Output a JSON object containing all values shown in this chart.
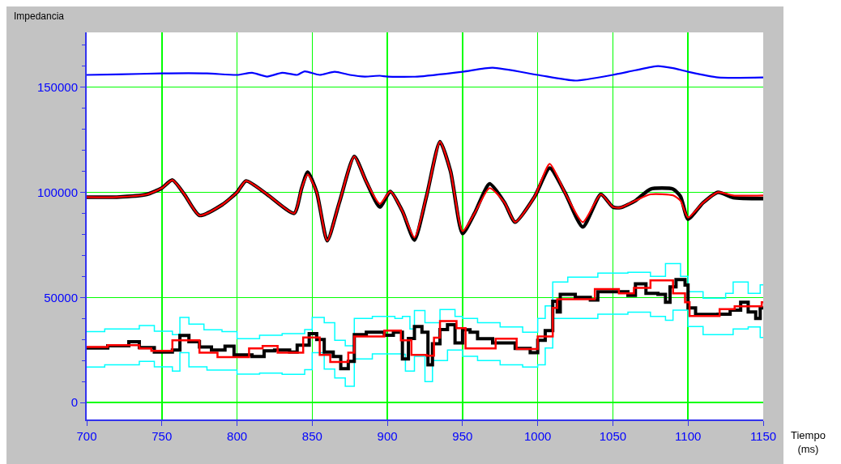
{
  "chart_data": {
    "type": "line",
    "xlabel": "Tiempo\n(ms)",
    "ylabel": "Impedancia",
    "xlim": [
      700,
      1150
    ],
    "xticks": [
      700,
      750,
      800,
      850,
      900,
      950,
      1000,
      1050,
      1100,
      1150
    ],
    "ylim": [
      -8000,
      176000
    ],
    "yticks": [
      0,
      50000,
      100000,
      150000
    ],
    "grid": true,
    "series": [
      {
        "color": "#0000ff",
        "x": [
          700,
          720,
          750,
          780,
          800,
          810,
          820,
          830,
          840,
          845,
          855,
          865,
          875,
          885,
          895,
          900,
          920,
          950,
          970,
          1000,
          1025,
          1050,
          1065,
          1080,
          1090,
          1100,
          1120,
          1150
        ],
        "values": [
          155800,
          156000,
          156500,
          156500,
          155800,
          156800,
          155000,
          156800,
          155800,
          157500,
          155800,
          157300,
          155800,
          155000,
          155400,
          155000,
          155000,
          157300,
          159200,
          155800,
          153100,
          155800,
          158000,
          160000,
          159000,
          157300,
          154600,
          154600
        ]
      },
      {
        "color": "#000000",
        "x": [
          700,
          720,
          740,
          750,
          757,
          765,
          775,
          790,
          800,
          806,
          820,
          838,
          843,
          847,
          853,
          860,
          868,
          878,
          886,
          895,
          902,
          910,
          918,
          926,
          935,
          942,
          950,
          958,
          968,
          978,
          985,
          998,
          1008,
          1018,
          1030,
          1042,
          1050,
          1055,
          1065,
          1075,
          1090,
          1095,
          1100,
          1110,
          1120,
          1130,
          1150
        ],
        "values": [
          97700,
          97700,
          99000,
          102000,
          105800,
          99000,
          89000,
          94000,
          100000,
          105400,
          99000,
          90000,
          102000,
          109600,
          100000,
          77000,
          95000,
          117000,
          105000,
          93000,
          100400,
          91000,
          77300,
          98000,
          124000,
          110000,
          80400,
          90000,
          104000,
          95000,
          85800,
          98000,
          111500,
          100000,
          83500,
          99000,
          93000,
          92700,
          96000,
          101500,
          101500,
          98000,
          87300,
          95000,
          100000,
          97500,
          97000
        ]
      },
      {
        "color": "#ff0000",
        "x": [
          700,
          720,
          740,
          750,
          757,
          765,
          775,
          790,
          800,
          806,
          820,
          838,
          843,
          847,
          853,
          860,
          868,
          878,
          886,
          895,
          902,
          910,
          918,
          926,
          935,
          942,
          950,
          958,
          968,
          978,
          985,
          998,
          1008,
          1018,
          1030,
          1042,
          1050,
          1055,
          1065,
          1075,
          1090,
          1095,
          1100,
          1110,
          1120,
          1130,
          1150
        ],
        "values": [
          97700,
          97700,
          99000,
          102000,
          105800,
          99000,
          89000,
          94000,
          100000,
          105400,
          99000,
          90000,
          102000,
          108500,
          100000,
          77000,
          95000,
          117000,
          105000,
          94500,
          100400,
          91000,
          78500,
          98000,
          124000,
          110000,
          81500,
          90000,
          102000,
          95000,
          85800,
          98000,
          113500,
          100000,
          85800,
          99000,
          93000,
          92700,
          96000,
          99000,
          98500,
          96000,
          88000,
          95000,
          100000,
          98500,
          98500
        ]
      },
      {
        "type": "step",
        "color": "#00ffff",
        "x": [
          700,
          712,
          735,
          745,
          757,
          762,
          768,
          778,
          790,
          800,
          815,
          830,
          845,
          850,
          858,
          865,
          872,
          878,
          890,
          905,
          910,
          915,
          918,
          925,
          935,
          945,
          950,
          960,
          975,
          990,
          1000,
          1005,
          1010,
          1020,
          1040,
          1060,
          1075,
          1085,
          1095,
          1100,
          1110,
          1125,
          1130,
          1140,
          1148,
          1150
        ],
        "values": [
          33800,
          35000,
          36700,
          34000,
          32300,
          40500,
          37300,
          34600,
          33800,
          30400,
          32000,
          32800,
          34700,
          40500,
          38000,
          29600,
          27000,
          40000,
          41000,
          40000,
          41000,
          35000,
          43800,
          38000,
          44300,
          41000,
          40000,
          38000,
          36000,
          33500,
          40000,
          46000,
          57300,
          59700,
          61600,
          62000,
          60000,
          66100,
          60000,
          52700,
          49600,
          52000,
          57300,
          52000,
          56000,
          56000
        ]
      },
      {
        "type": "step",
        "color": "#00ffff",
        "x": [
          700,
          712,
          735,
          745,
          757,
          762,
          768,
          780,
          800,
          815,
          830,
          845,
          850,
          858,
          865,
          872,
          878,
          890,
          910,
          912,
          918,
          925,
          930,
          940,
          950,
          960,
          975,
          990,
          1000,
          1005,
          1010,
          1020,
          1040,
          1060,
          1075,
          1085,
          1090,
          1100,
          1110,
          1130,
          1140,
          1148,
          1150
        ],
        "values": [
          16900,
          18000,
          19600,
          17000,
          15000,
          23800,
          17000,
          15500,
          13600,
          14000,
          13500,
          15700,
          23800,
          16000,
          11700,
          7800,
          20800,
          23200,
          23000,
          15000,
          22000,
          10000,
          20000,
          25000,
          22000,
          20000,
          18000,
          16900,
          18000,
          26000,
          40000,
          40000,
          42000,
          43000,
          41000,
          39200,
          44000,
          36200,
          32300,
          35000,
          36000,
          31000,
          31000
        ]
      },
      {
        "type": "step",
        "color": "#000000",
        "x": [
          700,
          714,
          728,
          735,
          745,
          757,
          762,
          768,
          775,
          783,
          792,
          798,
          810,
          818,
          825,
          835,
          840,
          848,
          853,
          858,
          864,
          869,
          874,
          878,
          886,
          898,
          904,
          910,
          914,
          918,
          923,
          927,
          930,
          935,
          940,
          945,
          950,
          955,
          960,
          970,
          985,
          995,
          1000,
          1005,
          1010,
          1013,
          1015,
          1025,
          1035,
          1040,
          1050,
          1060,
          1065,
          1072,
          1080,
          1085,
          1088,
          1092,
          1098,
          1100,
          1105,
          1120,
          1128,
          1135,
          1140,
          1145,
          1148,
          1150
        ],
        "values": [
          26000,
          27000,
          29000,
          26200,
          24000,
          25000,
          31900,
          29000,
          26500,
          25000,
          26800,
          22700,
          21900,
          24600,
          25000,
          24000,
          27300,
          32800,
          30000,
          24000,
          21900,
          16200,
          19600,
          32300,
          33500,
          32000,
          33500,
          20800,
          30500,
          36200,
          33500,
          18000,
          28000,
          34700,
          37000,
          28400,
          34600,
          33500,
          30400,
          28400,
          25800,
          23800,
          29600,
          34200,
          48200,
          43100,
          51500,
          50000,
          48800,
          52700,
          52700,
          51000,
          56500,
          52000,
          51500,
          47700,
          55000,
          58500,
          55900,
          45000,
          41900,
          42000,
          44000,
          47700,
          43100,
          40000,
          45000,
          45000
        ]
      },
      {
        "type": "step",
        "color": "#ff0000",
        "x": [
          700,
          714,
          735,
          743,
          757,
          775,
          787,
          808,
          817,
          827,
          844,
          855,
          862,
          874,
          878,
          898,
          909,
          916,
          926,
          931,
          935,
          946,
          952,
          972,
          986,
          1000,
          1010,
          1013,
          1038,
          1054,
          1064,
          1075,
          1090,
          1098,
          1101,
          1121,
          1131,
          1149,
          1150
        ],
        "values": [
          26500,
          27300,
          25800,
          24600,
          29600,
          23800,
          21600,
          25800,
          26900,
          23800,
          31000,
          22700,
          19300,
          23800,
          31500,
          34200,
          29600,
          22700,
          22300,
          30900,
          38800,
          35400,
          25800,
          30400,
          25500,
          31500,
          45000,
          49200,
          54000,
          52000,
          54600,
          58100,
          52000,
          47700,
          41200,
          44400,
          45800,
          47700,
          47700
        ]
      }
    ]
  }
}
